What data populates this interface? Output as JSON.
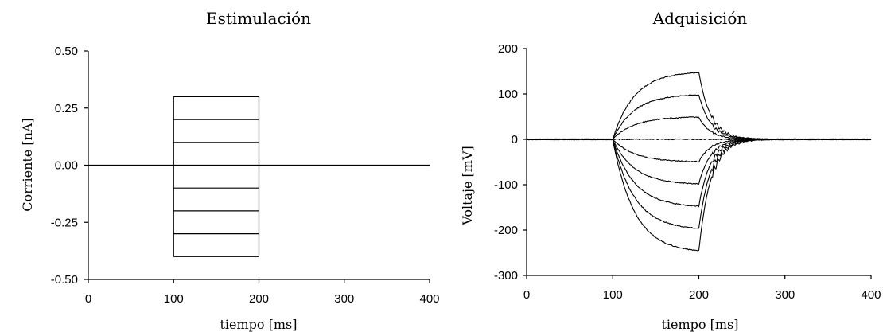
{
  "colors": {
    "background": "#ffffff",
    "trace": "#000000",
    "axis": "#000000"
  },
  "chart_data": [
    {
      "type": "line",
      "title": "Estimulación",
      "xlabel": "tiempo [ms]",
      "ylabel": "Corriente [nA]",
      "xlim": [
        0,
        400
      ],
      "ylim": [
        -0.5,
        0.5
      ],
      "xticks": [
        0,
        100,
        200,
        300,
        400
      ],
      "xtick_labels": [
        "0",
        "100",
        "200",
        "300",
        "400"
      ],
      "yticks": [
        -0.5,
        -0.25,
        0,
        0.25,
        0.5
      ],
      "ytick_labels": [
        "-0.50",
        "-0.25",
        "0.00",
        "0.25",
        "0.50"
      ],
      "grid": false,
      "stimulus": {
        "onset_ms": 100,
        "offset_ms": 200,
        "end_ms": 400
      },
      "series_amplitudes": [
        0.3,
        0.2,
        0.1,
        -0.1,
        -0.2,
        -0.3,
        -0.4
      ],
      "baseline_line": {
        "x": [
          0,
          400
        ],
        "y": 0
      }
    },
    {
      "type": "line",
      "title": "Adquisición",
      "xlabel": "tiempo [ms]",
      "ylabel": "Voltaje [mV]",
      "xlim": [
        0,
        400
      ],
      "ylim": [
        -300,
        200
      ],
      "xticks": [
        0,
        100,
        200,
        300,
        400
      ],
      "xtick_labels": [
        "0",
        "100",
        "200",
        "300",
        "400"
      ],
      "yticks": [
        -300,
        -200,
        -100,
        0,
        100,
        200
      ],
      "ytick_labels": [
        "-300",
        "-200",
        "-100",
        "0",
        "100",
        "200"
      ],
      "grid": false,
      "response": {
        "onset_ms": 100,
        "offset_ms": 200,
        "end_ms": 400,
        "tau_ms": 25
      },
      "series_plateaus": [
        150,
        100,
        50,
        0,
        -50,
        -100,
        -150,
        -200,
        -250
      ]
    }
  ]
}
